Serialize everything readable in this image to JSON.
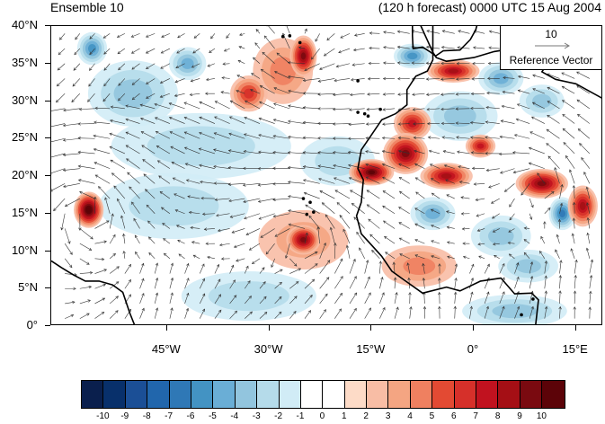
{
  "header": {
    "left_title": "Ensemble 10",
    "right_title": "(120 h forecast) 0000 UTC 15 Aug 2004"
  },
  "axes": {
    "lat_labels": [
      "40°N",
      "35°N",
      "30°N",
      "25°N",
      "20°N",
      "15°N",
      "10°N",
      "5°N",
      "0°"
    ],
    "lon_labels": [
      "45°W",
      "30°W",
      "15°W",
      "0°",
      "15°E"
    ],
    "lon_range": [
      -62,
      19
    ],
    "lat_range": [
      0,
      40
    ]
  },
  "reference_vector": {
    "magnitude": "10",
    "label": "Reference Vector"
  },
  "colorbar": {
    "labels": [
      "-10",
      "-9",
      "-8",
      "-7",
      "-6",
      "-5",
      "-4",
      "-3",
      "-2",
      "-1",
      "0",
      "1",
      "2",
      "3",
      "4",
      "5",
      "6",
      "7",
      "8",
      "9",
      "10"
    ],
    "colors": [
      "#0a1f4d",
      "#08306b",
      "#1b4f96",
      "#2166ac",
      "#2f78b6",
      "#4393c3",
      "#6aaed6",
      "#92c5de",
      "#b5dbea",
      "#d1ecf6",
      "#ffffff",
      "#ffffff",
      "#fddbc7",
      "#f8bda5",
      "#f4a582",
      "#ef8060",
      "#e34a33",
      "#d6302a",
      "#c1121f",
      "#a50f15",
      "#7a0a10",
      "#5c0308"
    ]
  },
  "colors": {
    "land": "#d2d2d2",
    "coast": "#000000",
    "arrow": "#333333"
  },
  "anomalies": [
    {
      "lon": -56.5,
      "lat": 15.5,
      "value": 10,
      "rlon": 2.0,
      "rlat": 2.2
    },
    {
      "lon": -25,
      "lat": 11.5,
      "value": 8,
      "rlon": 2.3,
      "rlat": 1.8
    },
    {
      "lon": -25,
      "lat": 11.5,
      "value": 2,
      "rlon": 6,
      "rlat": 3.6
    },
    {
      "lon": -25,
      "lat": 36,
      "value": 8,
      "rlon": 1.8,
      "rlat": 2.5
    },
    {
      "lon": -28,
      "lat": 34,
      "value": 3,
      "rlon": 4,
      "rlat": 4
    },
    {
      "lon": -33,
      "lat": 31,
      "value": 5,
      "rlon": 2.5,
      "rlat": 2.2
    },
    {
      "lon": -56,
      "lat": 37,
      "value": -5,
      "rlon": 2,
      "rlat": 2
    },
    {
      "lon": -42,
      "lat": 35,
      "value": -4,
      "rlon": 2.5,
      "rlat": 2
    },
    {
      "lon": -50,
      "lat": 31,
      "value": -3,
      "rlon": 6,
      "rlat": 4
    },
    {
      "lon": -40,
      "lat": 24,
      "value": -2,
      "rlon": 12,
      "rlat": 4
    },
    {
      "lon": -44,
      "lat": 16,
      "value": -2,
      "rlon": 10,
      "rlat": 4
    },
    {
      "lon": -33,
      "lat": 4,
      "value": -2,
      "rlon": 9,
      "rlat": 3
    },
    {
      "lon": -20,
      "lat": 22,
      "value": -2,
      "rlon": 5,
      "rlat": 3
    },
    {
      "lon": -15,
      "lat": 20.5,
      "value": 9,
      "rlon": 3,
      "rlat": 1.6
    },
    {
      "lon": -10,
      "lat": 23,
      "value": 8,
      "rlon": 3,
      "rlat": 2.5
    },
    {
      "lon": -9,
      "lat": 27,
      "value": 6,
      "rlon": 2.5,
      "rlat": 2
    },
    {
      "lon": -4,
      "lat": 20,
      "value": 7,
      "rlon": 3.5,
      "rlat": 1.6
    },
    {
      "lon": 1,
      "lat": 24,
      "value": 6,
      "rlon": 2,
      "rlat": 1.4
    },
    {
      "lon": 10,
      "lat": 19,
      "value": 8,
      "rlon": 3.5,
      "rlat": 1.8
    },
    {
      "lon": 16,
      "lat": 16,
      "value": 7,
      "rlon": 2,
      "rlat": 2.5
    },
    {
      "lon": -3,
      "lat": 34,
      "value": 7,
      "rlon": 3.5,
      "rlat": 1.4
    },
    {
      "lon": -9,
      "lat": 36,
      "value": -5,
      "rlon": 2.5,
      "rlat": 1.5
    },
    {
      "lon": 4,
      "lat": 33,
      "value": -4,
      "rlon": 3,
      "rlat": 2
    },
    {
      "lon": 10,
      "lat": 30,
      "value": -3,
      "rlon": 3,
      "rlat": 2
    },
    {
      "lon": -6,
      "lat": 15,
      "value": -4,
      "rlon": 3,
      "rlat": 2
    },
    {
      "lon": 13,
      "lat": 15,
      "value": -6,
      "rlon": 1.8,
      "rlat": 2
    },
    {
      "lon": 4,
      "lat": 12,
      "value": -3,
      "rlon": 4,
      "rlat": 2.5
    },
    {
      "lon": -8,
      "lat": 8,
      "value": 3,
      "rlon": 5,
      "rlat": 2.5
    },
    {
      "lon": 8,
      "lat": 8,
      "value": -3,
      "rlon": 4,
      "rlat": 2
    },
    {
      "lon": 6,
      "lat": 2,
      "value": -3,
      "rlon": 7,
      "rlat": 2
    },
    {
      "lon": -2,
      "lat": 28,
      "value": -3,
      "rlon": 5,
      "rlat": 3
    }
  ],
  "land_polygons": [
    {
      "name": "africa",
      "points": [
        [
          -8,
          40.5
        ],
        [
          -6,
          36.5
        ],
        [
          -5.5,
          35.8
        ],
        [
          -4,
          35.3
        ],
        [
          0,
          35.8
        ],
        [
          3,
          36.6
        ],
        [
          7,
          37.2
        ],
        [
          10,
          37.1
        ],
        [
          11,
          35.2
        ],
        [
          10,
          33.9
        ],
        [
          12,
          32.9
        ],
        [
          15,
          32.3
        ],
        [
          19,
          30.3
        ],
        [
          19,
          -0.5
        ],
        [
          9,
          -0.5
        ],
        [
          9.5,
          3.5
        ],
        [
          8.5,
          4.4
        ],
        [
          6,
          4.3
        ],
        [
          4,
          6.4
        ],
        [
          1,
          6
        ],
        [
          -2,
          4.7
        ],
        [
          -4,
          5.2
        ],
        [
          -7.5,
          4.4
        ],
        [
          -10,
          6
        ],
        [
          -12,
          7.3
        ],
        [
          -13.5,
          9.3
        ],
        [
          -15,
          10.8
        ],
        [
          -16.5,
          12.3
        ],
        [
          -17.2,
          14.7
        ],
        [
          -16.5,
          16.5
        ],
        [
          -16.2,
          19.5
        ],
        [
          -17,
          21
        ],
        [
          -16.5,
          23.5
        ],
        [
          -15,
          25.5
        ],
        [
          -13.5,
          27.5
        ],
        [
          -11.5,
          28.3
        ],
        [
          -9.8,
          29.5
        ],
        [
          -9.8,
          31.5
        ],
        [
          -8.5,
          33.3
        ],
        [
          -6.8,
          34
        ],
        [
          -6,
          35.5
        ],
        [
          -6,
          40.5
        ]
      ]
    },
    {
      "name": "iberia",
      "points": [
        [
          -9,
          40.5
        ],
        [
          -9,
          38.7
        ],
        [
          -8.9,
          37
        ],
        [
          -7.5,
          37.2
        ],
        [
          -6.3,
          36.5
        ],
        [
          -5.6,
          36
        ],
        [
          -4.5,
          36.7
        ],
        [
          -2,
          36.8
        ],
        [
          -0.5,
          38.2
        ],
        [
          0.3,
          39.5
        ],
        [
          0.6,
          40.5
        ]
      ]
    },
    {
      "name": "southamerica",
      "points": [
        [
          -62,
          8.7
        ],
        [
          -60.5,
          7.8
        ],
        [
          -58.7,
          6.8
        ],
        [
          -57,
          6
        ],
        [
          -55,
          6
        ],
        [
          -53,
          5.5
        ],
        [
          -51.5,
          4.5
        ],
        [
          -50.5,
          1.8
        ],
        [
          -49.5,
          -0.5
        ],
        [
          -62,
          -0.5
        ]
      ]
    }
  ],
  "islands": [
    {
      "lon": -16,
      "lat": 28.3
    },
    {
      "lon": -15.5,
      "lat": 28
    },
    {
      "lon": -17,
      "lat": 28.5
    },
    {
      "lon": -13.7,
      "lat": 28.9
    },
    {
      "lon": -24,
      "lat": 16.5
    },
    {
      "lon": -23.5,
      "lat": 15.2
    },
    {
      "lon": -24.5,
      "lat": 14.9
    },
    {
      "lon": -25,
      "lat": 17
    },
    {
      "lon": -17,
      "lat": 32.7
    },
    {
      "lon": -28,
      "lat": 38.6
    },
    {
      "lon": -25.5,
      "lat": 37.8
    },
    {
      "lon": -27,
      "lat": 38.7
    },
    {
      "lon": 8.7,
      "lat": 3.6
    },
    {
      "lon": 7,
      "lat": 1.5
    }
  ]
}
